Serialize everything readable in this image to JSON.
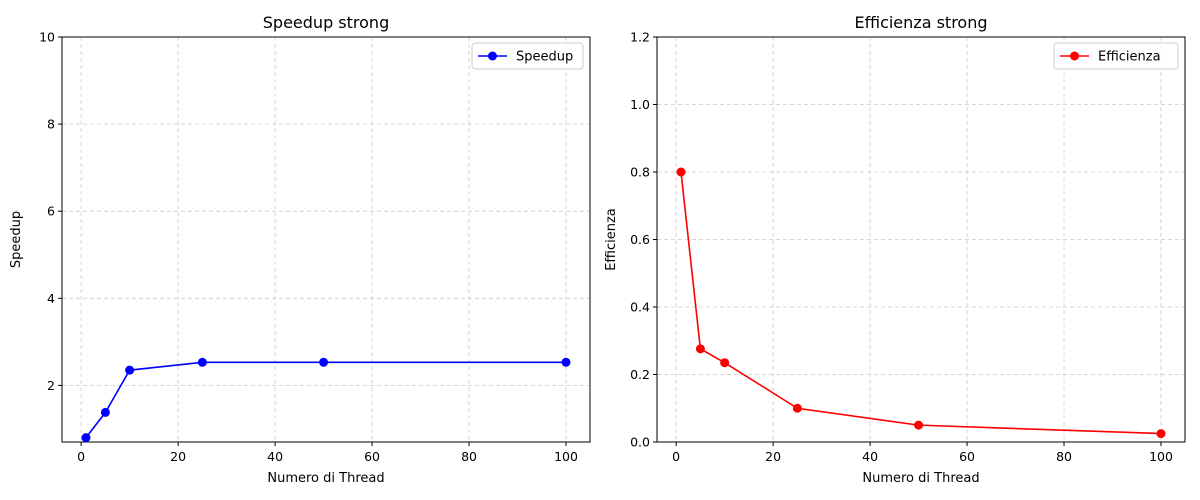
{
  "chart_data": [
    {
      "type": "line",
      "title": "Speedup strong",
      "xlabel": "Numero di Thread",
      "ylabel": "Speedup",
      "x": [
        1,
        5,
        10,
        25,
        50,
        100
      ],
      "series": [
        {
          "name": "Speedup",
          "values": [
            0.8,
            1.38,
            2.35,
            2.53,
            2.53,
            2.53
          ],
          "color": "#0000ff"
        }
      ],
      "xlim": [
        -3.95,
        104.95
      ],
      "ylim": [
        0.7,
        10
      ],
      "xticks": [
        0,
        20,
        40,
        60,
        80,
        100
      ],
      "yticks": [
        2,
        4,
        6,
        8,
        10
      ],
      "grid": true,
      "legend_position": "upper right"
    },
    {
      "type": "line",
      "title": "Efficienza strong",
      "xlabel": "Numero di Thread",
      "ylabel": "Efficienza",
      "x": [
        1,
        5,
        10,
        25,
        50,
        100
      ],
      "series": [
        {
          "name": "Efficienza",
          "values": [
            0.8,
            0.276,
            0.235,
            0.1,
            0.05,
            0.025
          ],
          "color": "#ff0000"
        }
      ],
      "xlim": [
        -3.95,
        104.95
      ],
      "ylim": [
        0,
        1.2
      ],
      "xticks": [
        0,
        20,
        40,
        60,
        80,
        100
      ],
      "yticks": [
        0.0,
        0.2,
        0.4,
        0.6,
        0.8,
        1.0,
        1.2
      ],
      "grid": true,
      "legend_position": "upper right"
    }
  ]
}
